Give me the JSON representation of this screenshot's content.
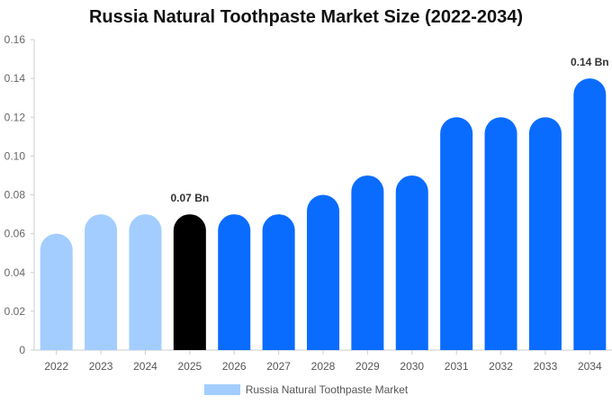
{
  "chart_data": {
    "type": "bar",
    "title": "Russia Natural Toothpaste Market Size (2022-2034)",
    "categories": [
      "2022",
      "2023",
      "2024",
      "2025",
      "2026",
      "2027",
      "2028",
      "2029",
      "2030",
      "2031",
      "2032",
      "2033",
      "2034"
    ],
    "series": [
      {
        "name": "Russia Natural Toothpaste Market",
        "values": [
          0.06,
          0.07,
          0.07,
          0.07,
          0.07,
          0.07,
          0.08,
          0.09,
          0.09,
          0.12,
          0.12,
          0.12,
          0.14
        ]
      }
    ],
    "y_ticks": [
      "0",
      "0.02",
      "0.04",
      "0.06",
      "0.08",
      "0.10",
      "0.12",
      "0.14",
      "0.16"
    ],
    "ylim": [
      0,
      0.16
    ],
    "xlabel": "",
    "ylabel": "",
    "data_labels": [
      {
        "index": 3,
        "text": "0.07 Bn"
      },
      {
        "index": 12,
        "text": "0.14 Bn"
      }
    ],
    "colors": {
      "historical": "#a3cdff",
      "current": "#000000",
      "forecast": "#0a6cff",
      "legend": "#a3cdff"
    },
    "current_index": 3,
    "grid": false,
    "legend_position": "bottom"
  }
}
